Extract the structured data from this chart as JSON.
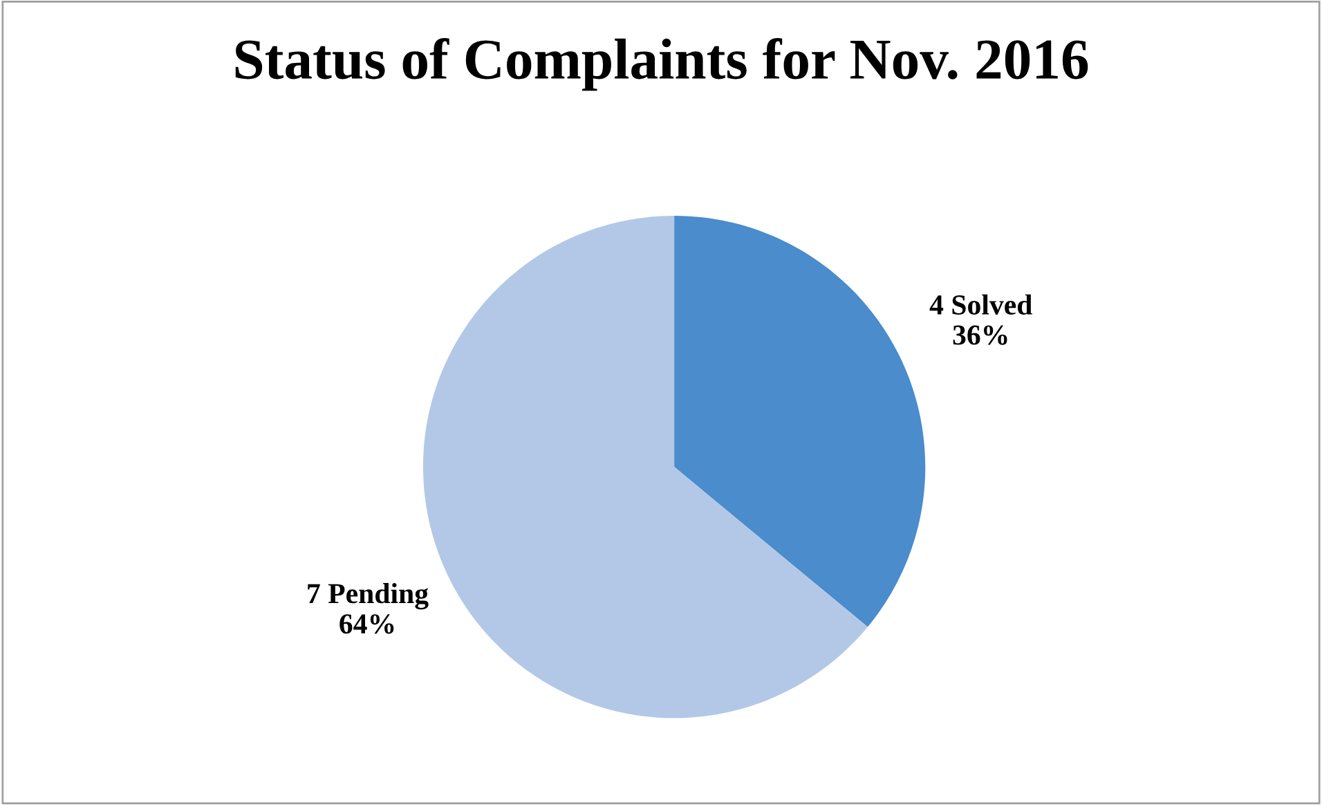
{
  "chart_data": {
    "type": "pie",
    "title": "Status of Complaints for Nov. 2016",
    "categories": [
      "4 Solved",
      "7 Pending"
    ],
    "values": [
      36,
      64
    ],
    "value_labels": [
      "36%",
      "64%"
    ],
    "colors": [
      "#4a8ccc",
      "#b2c8e6"
    ],
    "legend": false
  }
}
